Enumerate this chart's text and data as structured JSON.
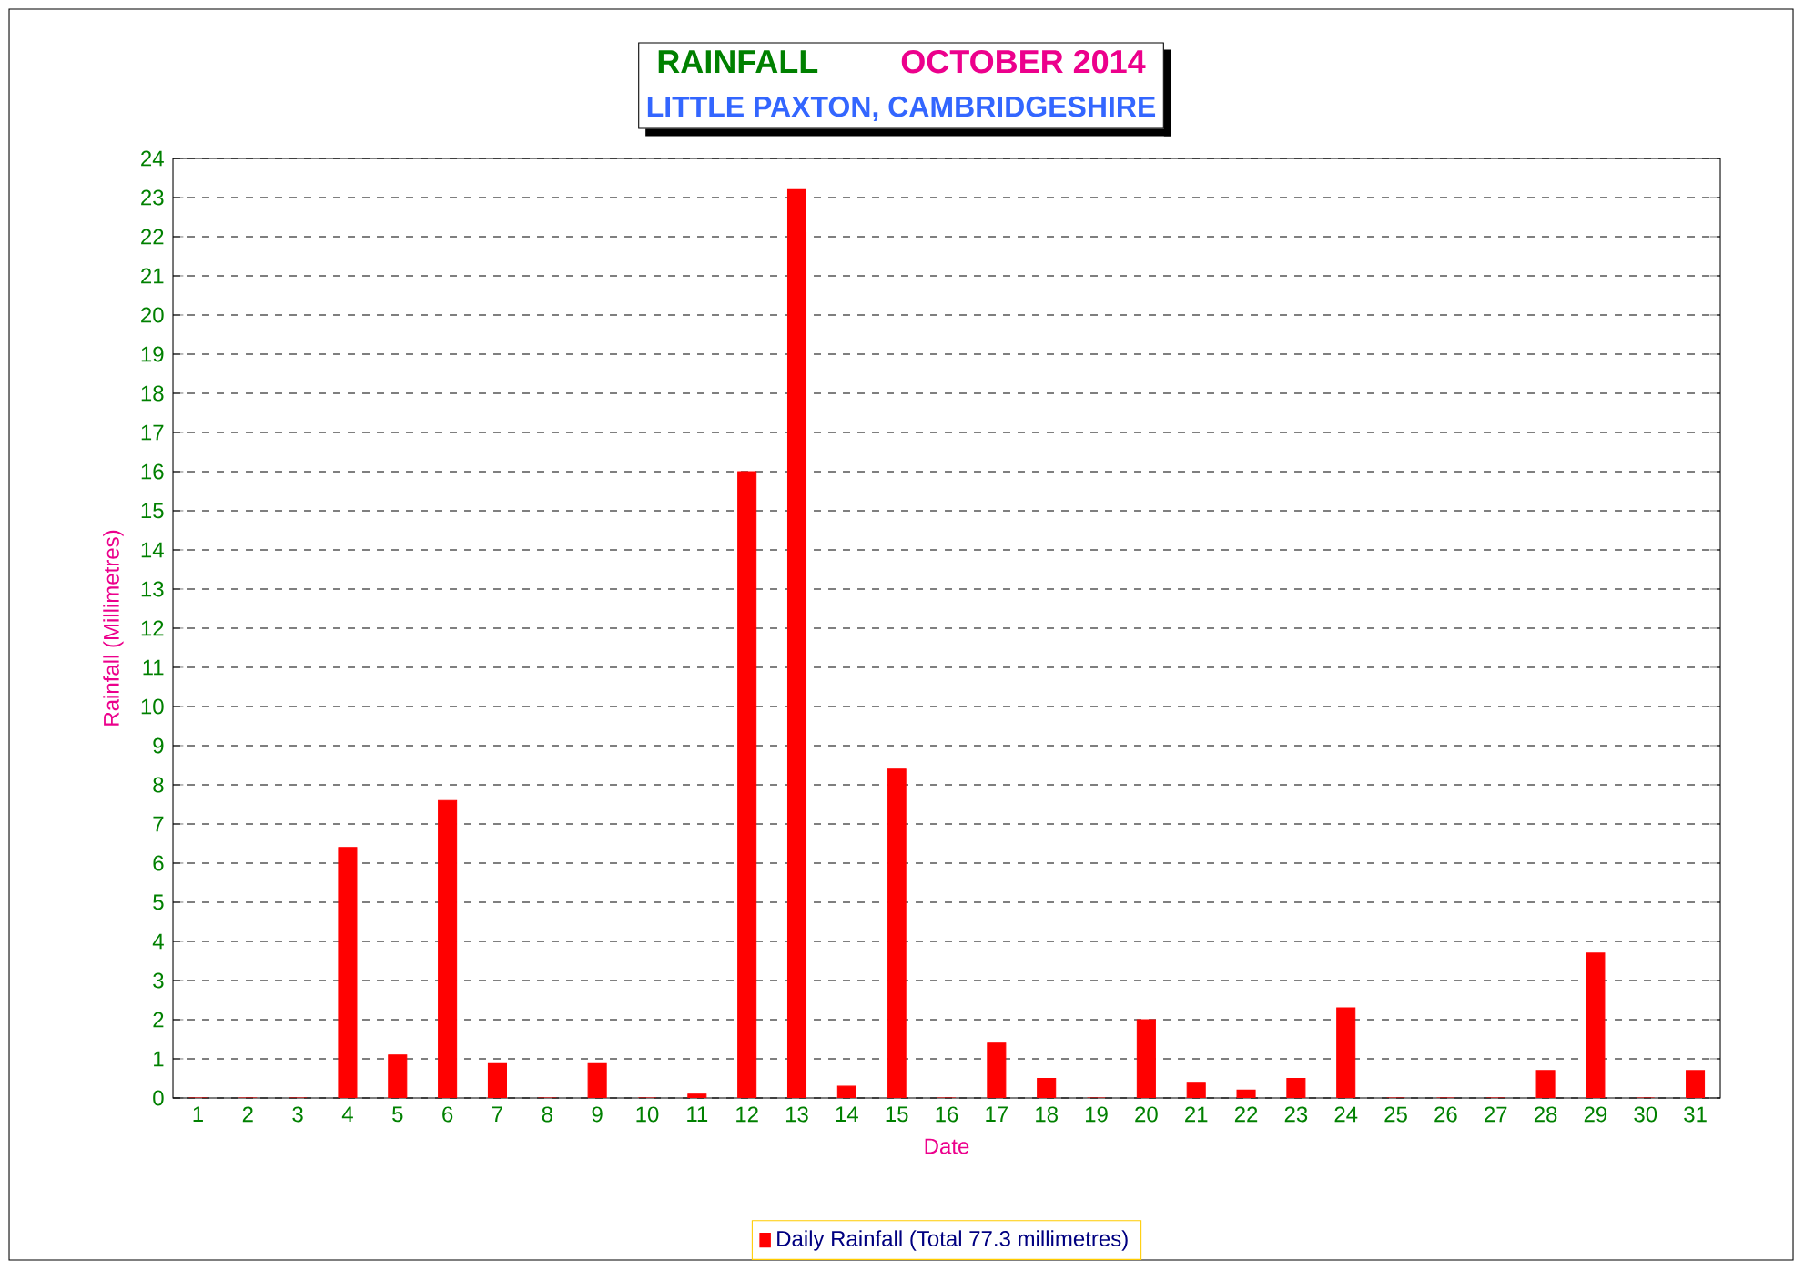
{
  "chart_data": {
    "type": "bar",
    "title": "RAINFALL",
    "subtitle": "OCTOBER 2014",
    "annotations": [
      "LITTLE PAXTON, CAMBRIDGESHIRE"
    ],
    "xlabel": "Date",
    "ylabel": "Rainfall  (Millimetres)",
    "categories": [
      "1",
      "2",
      "3",
      "4",
      "5",
      "6",
      "7",
      "8",
      "9",
      "10",
      "11",
      "12",
      "13",
      "14",
      "15",
      "16",
      "17",
      "18",
      "19",
      "20",
      "21",
      "22",
      "23",
      "24",
      "25",
      "26",
      "27",
      "28",
      "29",
      "30",
      "31"
    ],
    "series": [
      {
        "name": "Daily Rainfall (Total 77.3 millimetres)",
        "color": "#ff0000",
        "values": [
          0,
          0,
          0,
          6.4,
          1.1,
          7.6,
          0.9,
          0,
          0.9,
          0,
          0.1,
          16.0,
          23.2,
          0.3,
          8.4,
          0,
          1.4,
          0.5,
          0,
          2.0,
          0.4,
          0.2,
          0.5,
          2.3,
          0,
          0,
          0,
          0.7,
          3.7,
          0,
          0.7
        ]
      }
    ],
    "ylim": [
      0,
      24
    ],
    "yticks": [
      0,
      1,
      2,
      3,
      4,
      5,
      6,
      7,
      8,
      9,
      10,
      11,
      12,
      13,
      14,
      15,
      16,
      17,
      18,
      19,
      20,
      21,
      22,
      23,
      24
    ],
    "grid": "y",
    "legend": "bottom"
  }
}
